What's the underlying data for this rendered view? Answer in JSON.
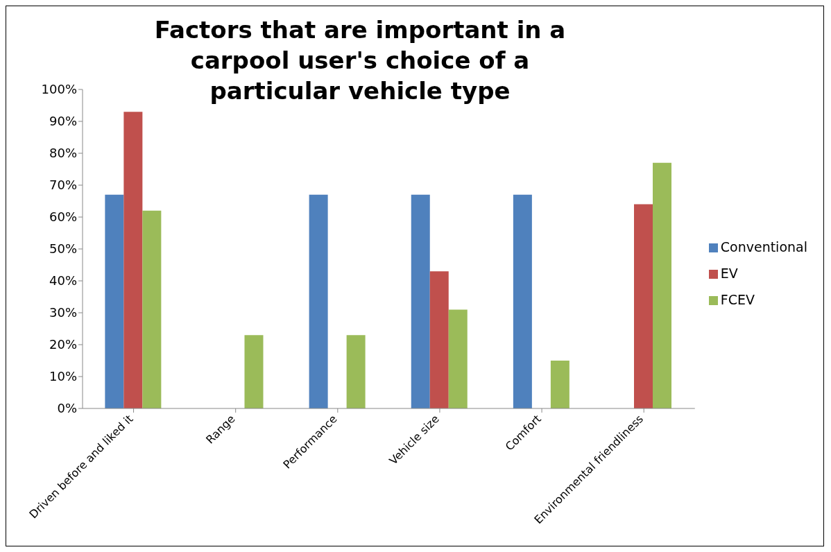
{
  "chart_data": {
    "type": "bar",
    "title": "Factors that are important in a carpool user's choice of a particular vehicle type",
    "categories": [
      "Driven before and liked it",
      "Range",
      "Performance",
      "Vehicle size",
      "Comfort",
      "Environmental friendliness"
    ],
    "series": [
      {
        "name": "Conventional",
        "color": "#4f81bd",
        "values": [
          67,
          0,
          67,
          67,
          67,
          0
        ]
      },
      {
        "name": "EV",
        "color": "#c0504d",
        "values": [
          93,
          0,
          0,
          43,
          0,
          64
        ]
      },
      {
        "name": "FCEV",
        "color": "#9bbb59",
        "values": [
          62,
          23,
          23,
          31,
          15,
          77
        ]
      }
    ],
    "ylim": [
      0,
      100
    ],
    "yticks": [
      {
        "value": 0,
        "label": "0%"
      },
      {
        "value": 10,
        "label": "10%"
      },
      {
        "value": 20,
        "label": "20%"
      },
      {
        "value": 30,
        "label": "30%"
      },
      {
        "value": 40,
        "label": "40%"
      },
      {
        "value": 50,
        "label": "50%"
      },
      {
        "value": 60,
        "label": "60%"
      },
      {
        "value": 70,
        "label": "70%"
      },
      {
        "value": 80,
        "label": "80%"
      },
      {
        "value": 90,
        "label": "90%"
      },
      {
        "value": 100,
        "label": "100%"
      }
    ],
    "grid": false,
    "legend": "right"
  }
}
